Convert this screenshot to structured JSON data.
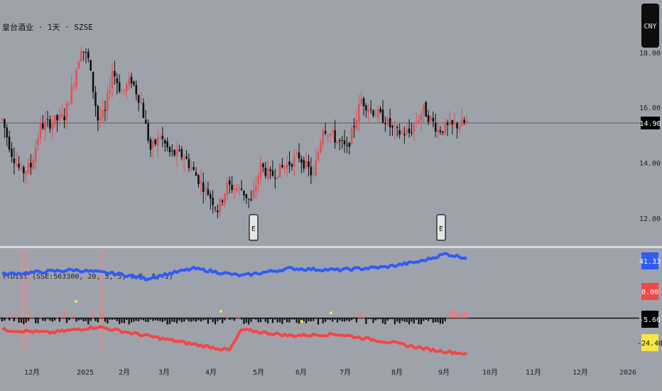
{
  "header": {
    "symbol_title": "皇台酒业 · 1天 · SZSE",
    "currency_badge": "CNY"
  },
  "chart_data": [
    {
      "type": "candlestick",
      "title": "皇台酒业 · 1天 · SZSE",
      "ylim": [
        11.2,
        18.6
      ],
      "y_ticks": [
        "18.00",
        "16.00",
        "14.00",
        "12.00"
      ],
      "y_tick_values": [
        18,
        16,
        14,
        12
      ],
      "last_price": "14.90",
      "last_price_value": 14.9,
      "earnings_markers": [
        "E",
        "E"
      ],
      "x_ticks": [
        "12月",
        "2025",
        "2月",
        "3月",
        "4月",
        "5月",
        "6月",
        "7月",
        "8月",
        "9月",
        "10月",
        "11月",
        "12月",
        "2026"
      ],
      "trading_days": 195,
      "anchors": [
        [
          0,
          15.0
        ],
        [
          4,
          14.0
        ],
        [
          8,
          13.4
        ],
        [
          12,
          13.6
        ],
        [
          16,
          14.8
        ],
        [
          20,
          14.9
        ],
        [
          26,
          15.1
        ],
        [
          30,
          16.2
        ],
        [
          33,
          17.2
        ],
        [
          36,
          16.8
        ],
        [
          40,
          15.0
        ],
        [
          43,
          15.2
        ],
        [
          46,
          16.5
        ],
        [
          50,
          15.8
        ],
        [
          54,
          16.2
        ],
        [
          58,
          15.5
        ],
        [
          62,
          14.1
        ],
        [
          66,
          14.5
        ],
        [
          70,
          14.0
        ],
        [
          76,
          13.9
        ],
        [
          82,
          13.2
        ],
        [
          86,
          12.8
        ],
        [
          90,
          12.3
        ],
        [
          94,
          13.0
        ],
        [
          100,
          12.9
        ],
        [
          104,
          12.5
        ],
        [
          108,
          13.6
        ],
        [
          112,
          13.3
        ],
        [
          118,
          13.6
        ],
        [
          124,
          13.9
        ],
        [
          130,
          13.3
        ],
        [
          134,
          14.8
        ],
        [
          138,
          14.5
        ],
        [
          144,
          14.1
        ],
        [
          150,
          15.6
        ],
        [
          154,
          15.3
        ],
        [
          160,
          15.0
        ],
        [
          164,
          14.6
        ],
        [
          170,
          14.6
        ],
        [
          176,
          15.3
        ],
        [
          182,
          14.7
        ],
        [
          188,
          14.8
        ],
        [
          194,
          14.9
        ]
      ]
    },
    {
      "type": "line",
      "title": "YTDist (SSE:563300, 20, 5, 5, 0.5, 5, 1)",
      "ylim": [
        -30,
        48
      ],
      "series": [
        {
          "name": "",
          "color": "#2f5cf5",
          "values": [
            [
              0,
              30
            ],
            [
              30,
              33
            ],
            [
              50,
              30
            ],
            [
              60,
              27
            ],
            [
              80,
              34
            ],
            [
              100,
              29
            ],
            [
              120,
              34
            ],
            [
              140,
              33
            ],
            [
              160,
              35
            ],
            [
              175,
              39
            ],
            [
              185,
              44
            ],
            [
              194,
              41.33
            ]
          ]
        },
        {
          "name": "",
          "color": "#f04747",
          "values": [
            [
              0,
              -8
            ],
            [
              20,
              -10
            ],
            [
              40,
              -6
            ],
            [
              60,
              -12
            ],
            [
              80,
              -18
            ],
            [
              95,
              -22
            ],
            [
              100,
              -8
            ],
            [
              120,
              -12
            ],
            [
              140,
              -11
            ],
            [
              160,
              -16
            ],
            [
              180,
              -22
            ],
            [
              194,
              -24.4
            ]
          ]
        }
      ],
      "histogram_zero": "0.00",
      "value_labels": [
        "41.33",
        "0.00",
        "-5.66",
        "-24.40"
      ],
      "label_colors": [
        "#2f5cf5",
        "#f04747",
        "#000000",
        "#f5e642"
      ]
    }
  ]
}
